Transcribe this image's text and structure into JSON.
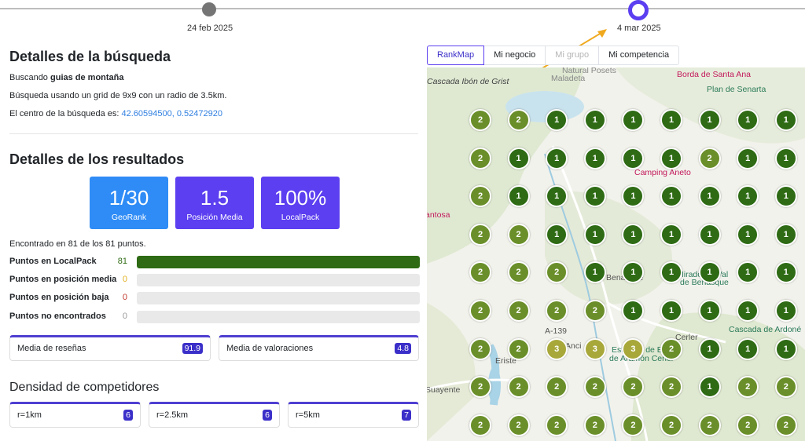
{
  "timeline": {
    "dates": [
      "24 feb 2025",
      "4 mar 2025"
    ],
    "active_index": 1
  },
  "search": {
    "title": "Detalles de la búsqueda",
    "searching_prefix": "Buscando",
    "keyword": "guias de montaña",
    "grid_text": "Búsqueda usando un grid de 9x9 con un radio de 3.5km.",
    "center_prefix": "El centro de la búsqueda es:",
    "center_coords": "42.60594500, 0.52472920"
  },
  "results": {
    "title": "Detalles de los resultados",
    "stats": [
      {
        "value": "1/30",
        "label": "GeoRank",
        "color": "#2f8cf6"
      },
      {
        "value": "1.5",
        "label": "Posición Media",
        "color": "#5b3ff0"
      },
      {
        "value": "100%",
        "label": "LocalPack",
        "color": "#5b3ff0"
      }
    ],
    "found_text": "Encontrado en 81 de los 81 puntos.",
    "bars": [
      {
        "label": "Puntos en LocalPack",
        "count": "81",
        "fraction": 1.0,
        "count_color": "#2e6b14"
      },
      {
        "label": "Puntos en posición media",
        "count": "0",
        "fraction": 0.0,
        "count_color": "#e0b020"
      },
      {
        "label": "Puntos en posición baja",
        "count": "0",
        "fraction": 0.0,
        "count_color": "#c0392b"
      },
      {
        "label": "Puntos no encontrados",
        "count": "0",
        "fraction": 0.0,
        "count_color": "#999999"
      }
    ],
    "cards": [
      {
        "label": "Media de reseñas",
        "value": "91.9"
      },
      {
        "label": "Media de valoraciones",
        "value": "4.8"
      }
    ]
  },
  "density": {
    "title": "Densidad de competidores",
    "cards": [
      {
        "label": "r=1km",
        "value": "6"
      },
      {
        "label": "r=2.5km",
        "value": "6"
      },
      {
        "label": "r=5km",
        "value": "7"
      }
    ]
  },
  "tabs": [
    {
      "label": "RankMap",
      "state": "active"
    },
    {
      "label": "Mi negocio",
      "state": "normal"
    },
    {
      "label": "Mi grupo",
      "state": "disabled"
    },
    {
      "label": "Mi competencia",
      "state": "normal"
    }
  ],
  "map": {
    "labels": [
      {
        "text": "Cascada Ibón de Grist",
        "color": "#444444",
        "italic": true
      },
      {
        "text": "Natural Posets",
        "color": "#888888",
        "italic": false
      },
      {
        "text": "Maladeta",
        "color": "#888888",
        "italic": false
      },
      {
        "text": "Borda de Santa Ana",
        "color": "#c2185b",
        "italic": false
      },
      {
        "text": "Plan de Senarta",
        "color": "#2a7a5a",
        "italic": false
      },
      {
        "text": "Camping Aneto",
        "color": "#c2185b",
        "italic": false
      },
      {
        "text": "antosa",
        "color": "#c2185b",
        "italic": false
      },
      {
        "text": "Benasque",
        "color": "#555555",
        "italic": false
      },
      {
        "text": "Mirador El Val",
        "color": "#2a7a5a",
        "italic": false
      },
      {
        "text": "de Benasque",
        "color": "#2a7a5a",
        "italic": false
      },
      {
        "text": "Cerler",
        "color": "#555555",
        "italic": false
      },
      {
        "text": "Cascada de Ardoné",
        "color": "#2a7a5a",
        "italic": false
      },
      {
        "text": "Anci",
        "color": "#555555",
        "italic": false
      },
      {
        "text": "Estación de Esquí",
        "color": "#2a7a5a",
        "italic": false
      },
      {
        "text": "de Aramón Cerler",
        "color": "#2a7a5a",
        "italic": false
      },
      {
        "text": "Eriste",
        "color": "#555555",
        "italic": false
      },
      {
        "text": "Suayente",
        "color": "#555555",
        "italic": false
      },
      {
        "text": "A-139",
        "color": "#555555",
        "italic": false
      }
    ],
    "rank_colors": {
      "1": "#2e6b14",
      "2": "#6a8f2a",
      "3": "#a8a83a"
    },
    "grid": [
      [
        2,
        2,
        1,
        1,
        1,
        1,
        1,
        1,
        1
      ],
      [
        2,
        1,
        1,
        1,
        1,
        1,
        2,
        1,
        1
      ],
      [
        2,
        1,
        1,
        1,
        1,
        1,
        1,
        1,
        1
      ],
      [
        2,
        2,
        1,
        1,
        1,
        1,
        1,
        1,
        1
      ],
      [
        2,
        2,
        2,
        1,
        1,
        1,
        1,
        1,
        1
      ],
      [
        2,
        2,
        2,
        2,
        1,
        1,
        1,
        1,
        1
      ],
      [
        2,
        2,
        3,
        3,
        3,
        2,
        1,
        1,
        1
      ],
      [
        2,
        2,
        2,
        2,
        2,
        2,
        1,
        2,
        2
      ],
      [
        2,
        2,
        2,
        2,
        2,
        2,
        2,
        2,
        2
      ]
    ]
  }
}
